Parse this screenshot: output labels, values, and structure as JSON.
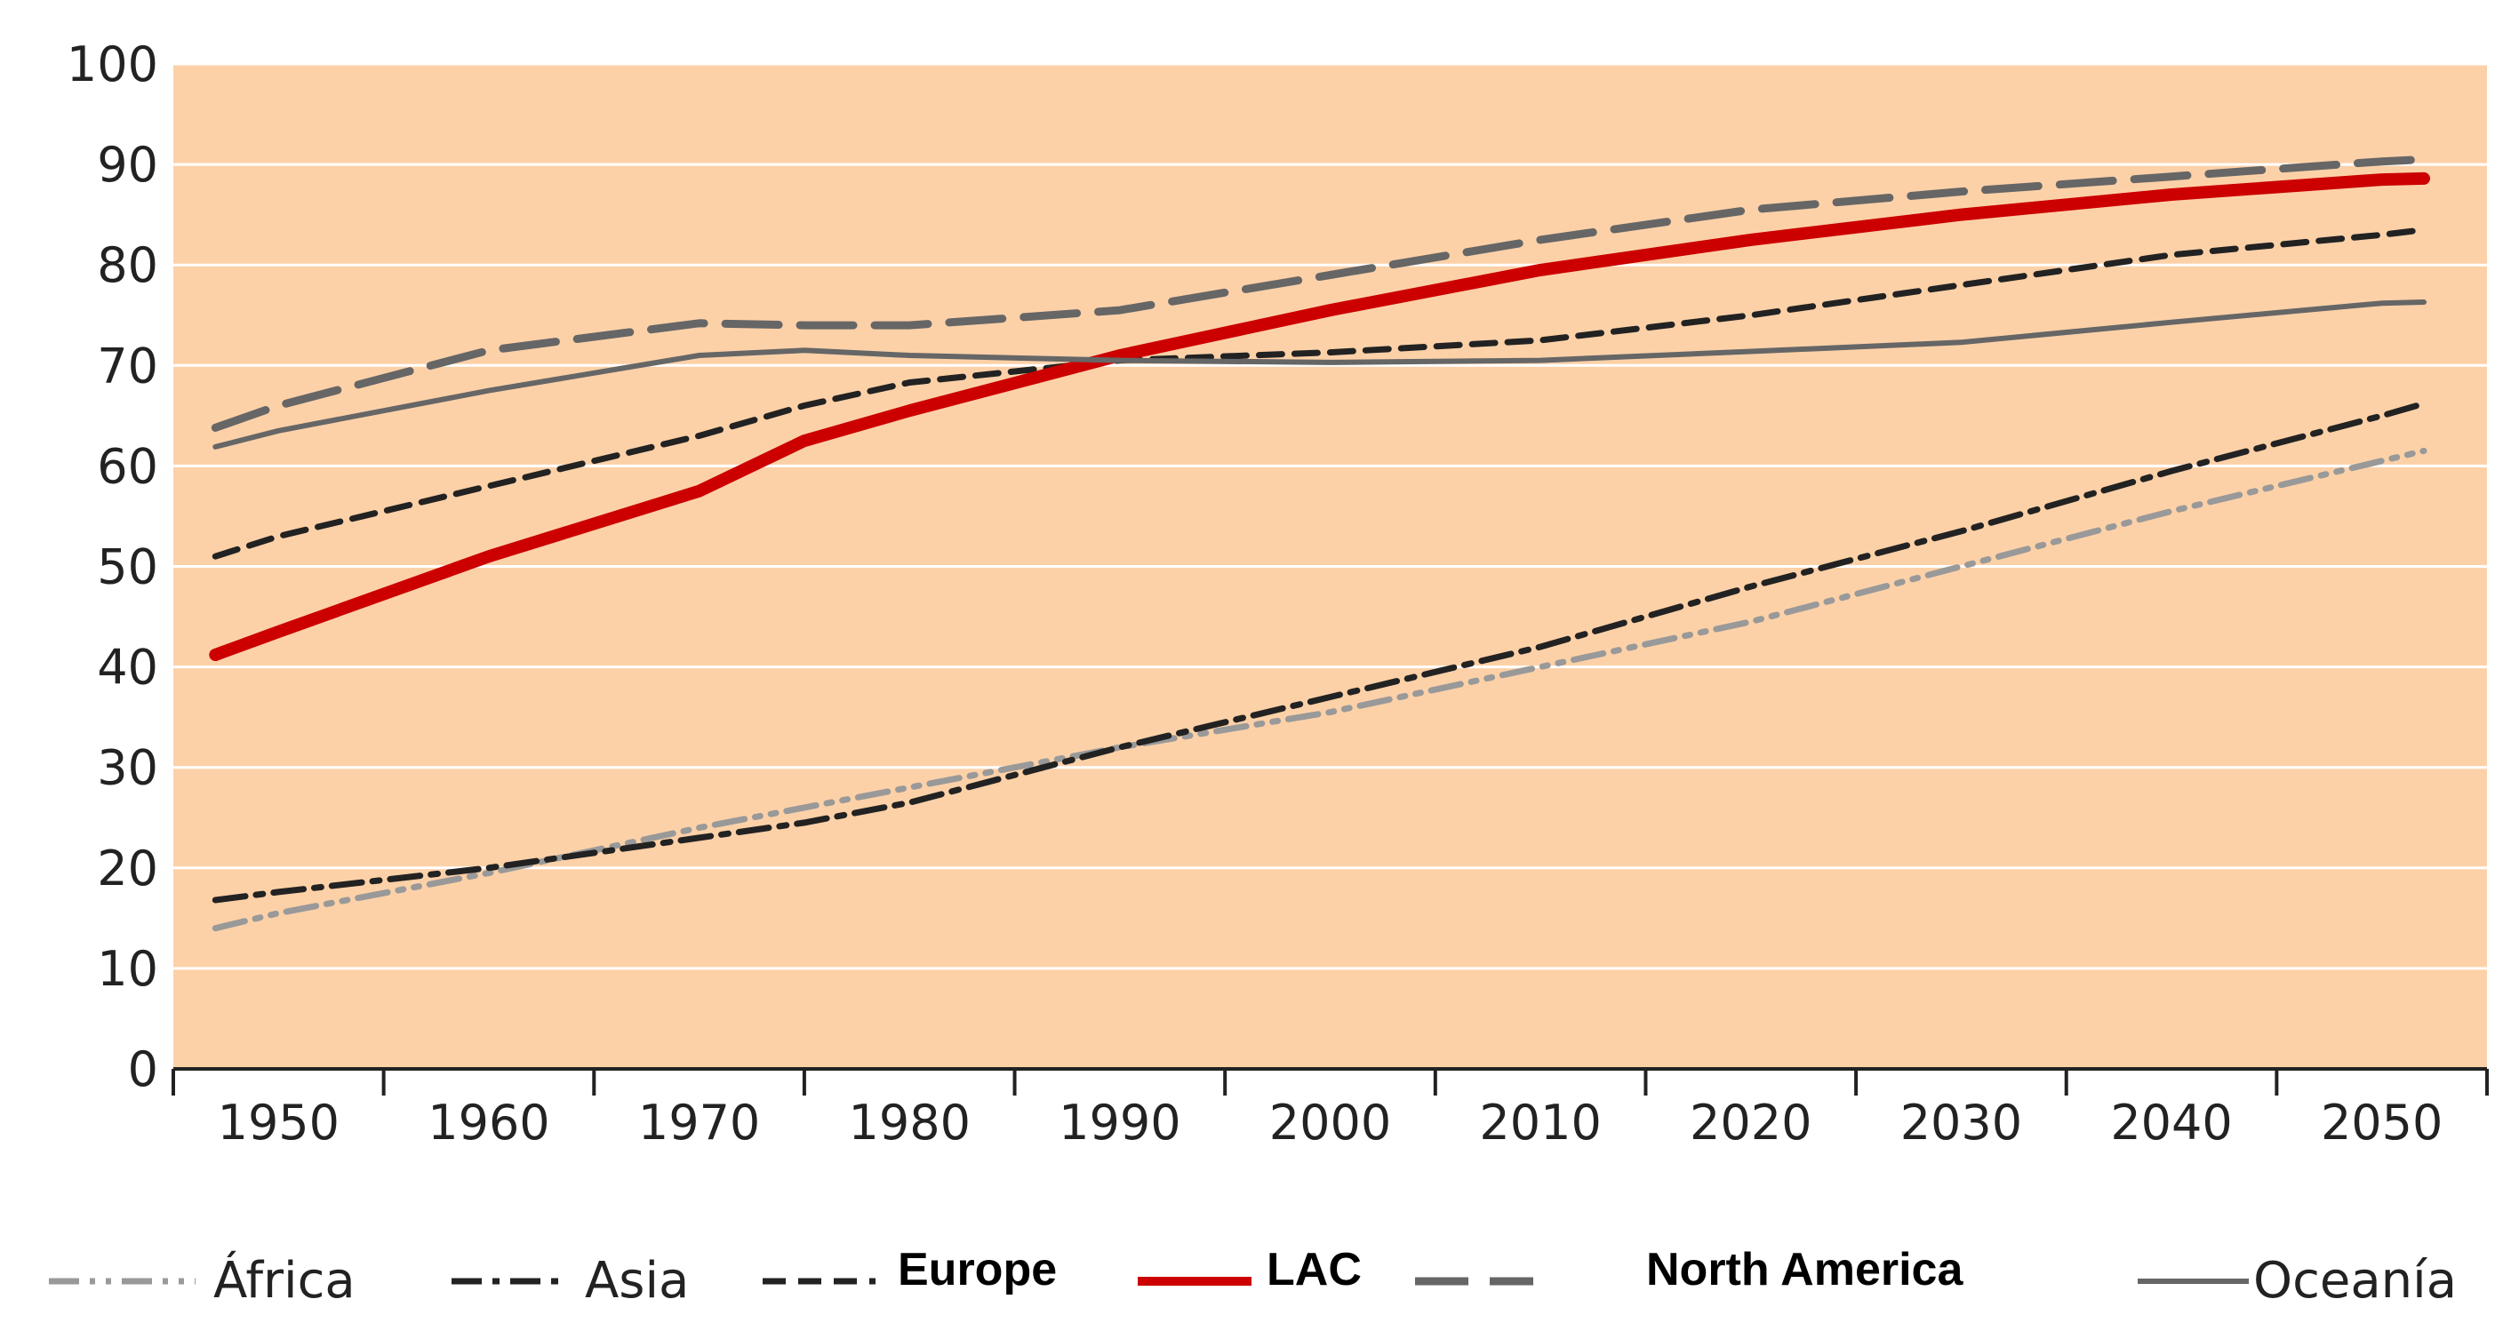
{
  "chart_data": {
    "type": "line",
    "title": "",
    "xlabel": "",
    "ylabel": "",
    "xlim": [
      1945,
      2055
    ],
    "ylim": [
      0,
      100
    ],
    "x_ticks": [
      1950,
      1960,
      1970,
      1980,
      1990,
      2000,
      2010,
      2020,
      2030,
      2040,
      2050
    ],
    "y_ticks": [
      0,
      10,
      20,
      30,
      40,
      50,
      60,
      70,
      80,
      90,
      100
    ],
    "grid": "horizontal",
    "legend_position": "bottom",
    "colors": {
      "plot_background": "#fdd1a8",
      "gridline": "#ffffff"
    },
    "x": [
      1947,
      1950,
      1960,
      1970,
      1975,
      1980,
      1990,
      2000,
      2010,
      2020,
      2030,
      2040,
      2050,
      2052
    ],
    "series": [
      {
        "name": "África",
        "color": "#999999",
        "dash": "dashdotdot",
        "values": [
          14,
          15.5,
          19.5,
          24,
          26,
          28,
          32,
          35.5,
          40,
          44.5,
          50,
          55.5,
          60.5,
          61.5
        ]
      },
      {
        "name": "Asia",
        "color": "#222222",
        "dash": "dashdot",
        "values": [
          16.8,
          17.6,
          20,
          23,
          24.5,
          26.5,
          32,
          37,
          42,
          48,
          53.5,
          59.5,
          65,
          66.2
        ]
      },
      {
        "name": "Europe",
        "color": "#222222",
        "dash": "dash",
        "values": [
          51,
          53,
          58,
          63,
          66,
          68.3,
          70.5,
          71.3,
          72.5,
          75,
          78,
          81,
          83,
          83.5
        ]
      },
      {
        "name": "LAC",
        "color": "#cc0000",
        "dash": "solid",
        "values": [
          41.2,
          43.5,
          51,
          57.5,
          62.5,
          65.5,
          71,
          75.5,
          79.5,
          82.5,
          85,
          87,
          88.5,
          88.6
        ]
      },
      {
        "name": "North America",
        "color": "#666666",
        "dash": "longdash",
        "values": [
          63.8,
          66,
          71.5,
          74.2,
          74,
          74,
          75.5,
          79,
          82.5,
          85.5,
          87.3,
          88.8,
          90.3,
          90.5
        ]
      },
      {
        "name": "Oceanía",
        "color": "#666666",
        "dash": "solid",
        "values": [
          61.9,
          63.5,
          67.5,
          71,
          71.5,
          71,
          70.5,
          70.3,
          70.5,
          71.4,
          72.3,
          74.3,
          76.2,
          76.3
        ]
      }
    ]
  }
}
